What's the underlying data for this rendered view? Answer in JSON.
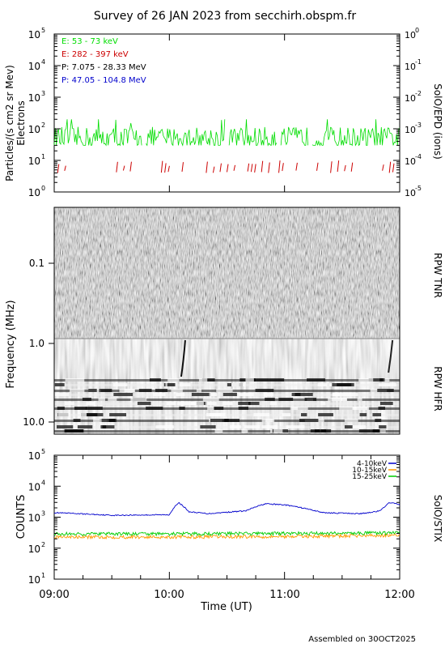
{
  "page": {
    "title": "Survey of 26 JAN 2023 from secchirh.obspm.fr",
    "footer": "Assembled on 30OCT2025"
  },
  "colors": {
    "green": "#00dd00",
    "red": "#cc0000",
    "black": "#000000",
    "blue": "#0000cc",
    "orange": "#ff9900",
    "stix_green": "#00cc00"
  },
  "chart_data": [
    {
      "type": "line",
      "panel": "epd",
      "ylabel": "Particles/(s cm2 sr Mev)",
      "ylabel2": "Electrons",
      "right_label": "SolO/EPD (ions)",
      "yscale": "log",
      "ylim": [
        1,
        100000
      ],
      "left_ticks": [
        "10",
        "10",
        "10",
        "10",
        "10",
        "10"
      ],
      "left_exps": [
        "0",
        "1",
        "2",
        "3",
        "4",
        "5"
      ],
      "right_ylim": [
        1e-05,
        1
      ],
      "right_ticks": [
        "10",
        "10",
        "10",
        "10",
        "10",
        "10"
      ],
      "right_exps": [
        "-5",
        "-4",
        "-3",
        "-2",
        "-1",
        "0"
      ],
      "xlim": [
        "09:00",
        "12:00"
      ],
      "legend_placement": "top-left",
      "series": [
        {
          "name": "E: 53 - 73 keV",
          "color": "#00dd00",
          "typical": 60,
          "range": [
            30,
            200
          ]
        },
        {
          "name": "E: 282 - 397 keV",
          "color": "#cc0000",
          "typical": 6,
          "range": [
            4,
            10
          ]
        },
        {
          "name": "P: 7.075 - 28.33 MeV",
          "color": "#000000"
        },
        {
          "name": "P: 47.05 - 104.8 MeV",
          "color": "#0000cc"
        }
      ]
    },
    {
      "type": "heatmap",
      "panel": "rpw",
      "ylabel": "Frequency (MHz)",
      "yscale": "log",
      "yticks": [
        "0.1",
        "1.0",
        "10.0"
      ],
      "upper_label": "RPW TNR",
      "lower_label": "RPW HFR",
      "features": [
        {
          "type": "drift-burst",
          "time": "10:07"
        },
        {
          "type": "drift-burst",
          "time": "11:55"
        }
      ]
    },
    {
      "type": "line",
      "panel": "stix",
      "ylabel": "COUNTS",
      "right_label": "SolO/STIX",
      "yscale": "log",
      "ylim": [
        10,
        100000
      ],
      "yticks": [
        "10",
        "10",
        "10",
        "10",
        "10"
      ],
      "yexps": [
        "1",
        "2",
        "3",
        "4",
        "5"
      ],
      "xlabel": "Time (UT)",
      "xticks": [
        "09:00",
        "10:00",
        "11:00",
        "12:00"
      ],
      "legend_placement": "top-right",
      "series": [
        {
          "name": "4-10keV",
          "color": "#0000cc",
          "x": [
            "09:00",
            "09:30",
            "10:00",
            "10:05",
            "10:10",
            "10:20",
            "10:40",
            "10:50",
            "11:00",
            "11:20",
            "11:40",
            "11:50",
            "11:55",
            "12:00"
          ],
          "y": [
            1400,
            1150,
            1200,
            2900,
            1500,
            1300,
            1600,
            2700,
            2500,
            1400,
            1300,
            1600,
            3000,
            2500
          ]
        },
        {
          "name": "10-15keV",
          "color": "#ff9900",
          "x": [
            "09:00",
            "10:00",
            "11:00",
            "12:00"
          ],
          "y": [
            230,
            230,
            240,
            260
          ]
        },
        {
          "name": "15-25keV",
          "color": "#00cc00",
          "x": [
            "09:00",
            "10:00",
            "11:00",
            "12:00"
          ],
          "y": [
            290,
            290,
            300,
            310
          ]
        }
      ]
    }
  ]
}
